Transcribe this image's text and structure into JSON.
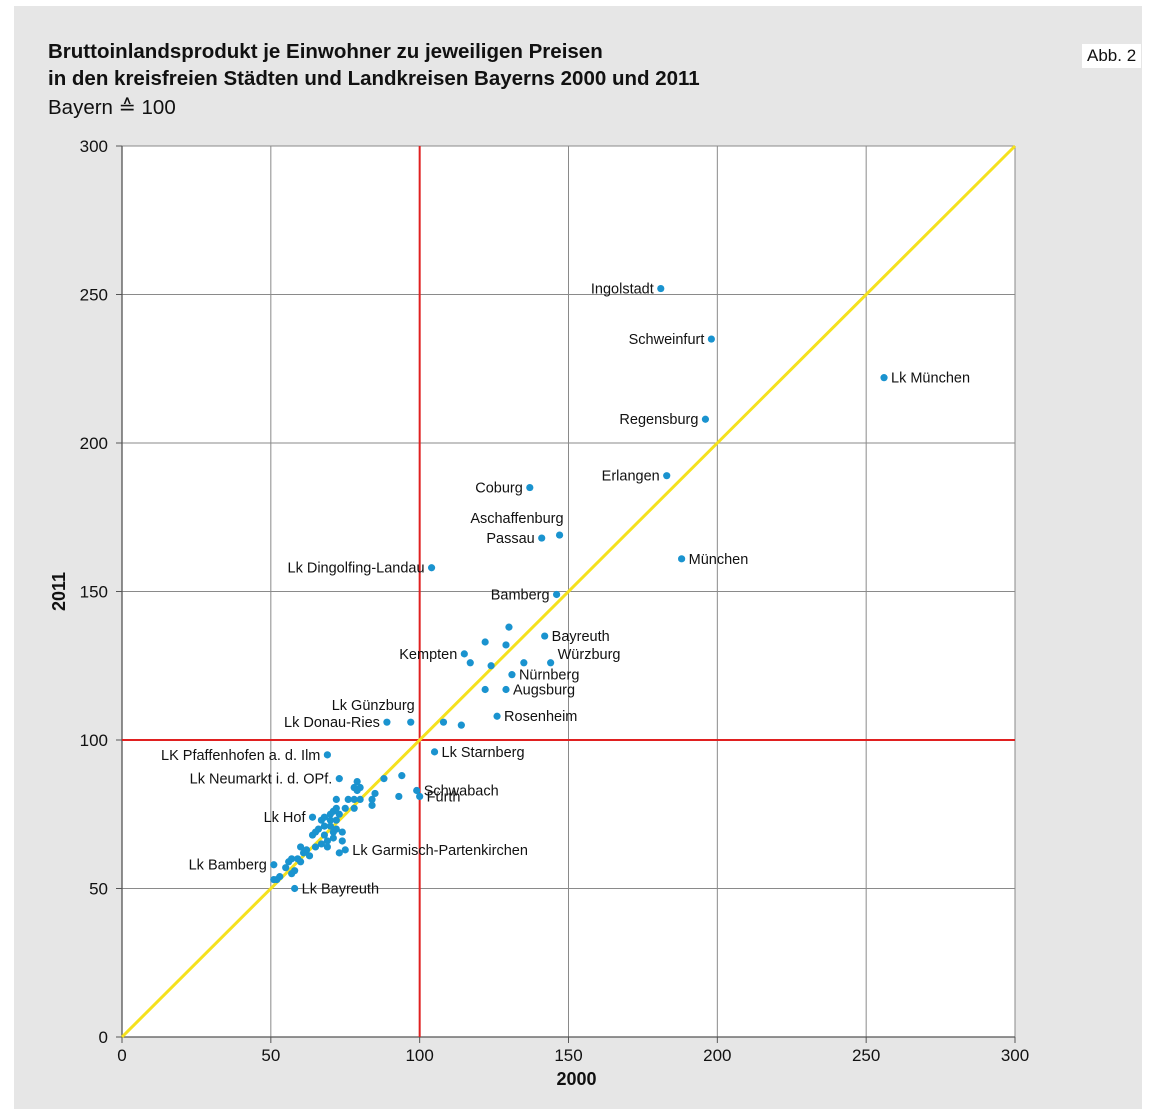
{
  "figure_number": "Abb. 2",
  "chart_data": {
    "type": "scatter",
    "title": "Bruttoinlandsprodukt je Einwohner zu jeweiligen Preisen\nin den kreisfreien Städten und Landkreisen Bayerns 2000 und 2011",
    "subtitle": "Bayern ≙ 100",
    "xlabel": "2000",
    "ylabel": "2011",
    "xlim": [
      0,
      300
    ],
    "ylim": [
      0,
      300
    ],
    "xticks": [
      0,
      50,
      100,
      150,
      200,
      250,
      300
    ],
    "yticks": [
      0,
      50,
      100,
      150,
      200,
      250,
      300
    ],
    "grid": true,
    "colors": {
      "points": "#1a93cf",
      "reference": "#e02020",
      "diagonal": "#f5e11e",
      "grid": "#8a8a8a"
    },
    "reference_lines": {
      "x": 100,
      "y": 100
    },
    "diagonal": [
      [
        0,
        0
      ],
      [
        300,
        300
      ]
    ],
    "labeled_points": [
      {
        "label": "Ingolstadt",
        "x": 181,
        "y": 252,
        "side": "left"
      },
      {
        "label": "Schweinfurt",
        "x": 198,
        "y": 235,
        "side": "left"
      },
      {
        "label": "Lk München",
        "x": 256,
        "y": 222,
        "side": "right"
      },
      {
        "label": "Regensburg",
        "x": 196,
        "y": 208,
        "side": "left"
      },
      {
        "label": "Erlangen",
        "x": 183,
        "y": 189,
        "side": "left"
      },
      {
        "label": "Coburg",
        "x": 137,
        "y": 185,
        "side": "left"
      },
      {
        "label": "Aschaffenburg",
        "x": 147,
        "y": 169,
        "side": "left-above"
      },
      {
        "label": "Passau",
        "x": 141,
        "y": 168,
        "side": "left"
      },
      {
        "label": "München",
        "x": 188,
        "y": 161,
        "side": "right"
      },
      {
        "label": "Lk Dingolfing-Landau",
        "x": 104,
        "y": 158,
        "side": "left"
      },
      {
        "label": "Bamberg",
        "x": 146,
        "y": 149,
        "side": "left"
      },
      {
        "label": "Bayreuth",
        "x": 142,
        "y": 135,
        "side": "right"
      },
      {
        "label": "Kempten",
        "x": 115,
        "y": 129,
        "side": "left"
      },
      {
        "label": "Würzburg",
        "x": 144,
        "y": 126,
        "side": "right-above"
      },
      {
        "label": "Nürnberg",
        "x": 131,
        "y": 122,
        "side": "right"
      },
      {
        "label": "Augsburg",
        "x": 129,
        "y": 117,
        "side": "right"
      },
      {
        "label": "Lk Günzburg",
        "x": 97,
        "y": 106,
        "side": "left-above"
      },
      {
        "label": "Lk Donau-Ries",
        "x": 89,
        "y": 106,
        "side": "left"
      },
      {
        "label": "Rosenheim",
        "x": 126,
        "y": 108,
        "side": "right"
      },
      {
        "label": "LK Pfaffenhofen a. d. Ilm",
        "x": 69,
        "y": 95,
        "side": "left"
      },
      {
        "label": "Lk Starnberg",
        "x": 105,
        "y": 96,
        "side": "right"
      },
      {
        "label": "Lk Neumarkt i. d. OPf.",
        "x": 73,
        "y": 87,
        "side": "left"
      },
      {
        "label": "Schwabach",
        "x": 99,
        "y": 83,
        "side": "right"
      },
      {
        "label": "Fürth",
        "x": 100,
        "y": 81,
        "side": "right"
      },
      {
        "label": "Lk Hof",
        "x": 64,
        "y": 74,
        "side": "left"
      },
      {
        "label": "Lk Garmisch-Partenkirchen",
        "x": 75,
        "y": 63,
        "side": "right"
      },
      {
        "label": "Lk Bamberg",
        "x": 51,
        "y": 58,
        "side": "left"
      },
      {
        "label": "Lk Bayreuth",
        "x": 58,
        "y": 50,
        "side": "right"
      }
    ],
    "points": [
      [
        122,
        133
      ],
      [
        130,
        138
      ],
      [
        129,
        132
      ],
      [
        117,
        126
      ],
      [
        124,
        125
      ],
      [
        135,
        126
      ],
      [
        122,
        117
      ],
      [
        108,
        106
      ],
      [
        114,
        105
      ],
      [
        94,
        88
      ],
      [
        88,
        87
      ],
      [
        79,
        86
      ],
      [
        80,
        84
      ],
      [
        78,
        84
      ],
      [
        79,
        83
      ],
      [
        85,
        82
      ],
      [
        84,
        80
      ],
      [
        80,
        80
      ],
      [
        78,
        80
      ],
      [
        76,
        80
      ],
      [
        72,
        80
      ],
      [
        93,
        81
      ],
      [
        84,
        78
      ],
      [
        78,
        77
      ],
      [
        75,
        77
      ],
      [
        72,
        77
      ],
      [
        71,
        76
      ],
      [
        73,
        75
      ],
      [
        70,
        75
      ],
      [
        72,
        73
      ],
      [
        68,
        74
      ],
      [
        70,
        73
      ],
      [
        67,
        73
      ],
      [
        70,
        71
      ],
      [
        68,
        71
      ],
      [
        66,
        70
      ],
      [
        72,
        70
      ],
      [
        74,
        69
      ],
      [
        71,
        69
      ],
      [
        65,
        69
      ],
      [
        68,
        68
      ],
      [
        64,
        68
      ],
      [
        71,
        67
      ],
      [
        69,
        66
      ],
      [
        74,
        66
      ],
      [
        67,
        65
      ],
      [
        65,
        64
      ],
      [
        60,
        64
      ],
      [
        62,
        63
      ],
      [
        69,
        64
      ],
      [
        63,
        61
      ],
      [
        57,
        60
      ],
      [
        56,
        59
      ],
      [
        60,
        59
      ],
      [
        55,
        57
      ],
      [
        58,
        56
      ],
      [
        57,
        55
      ],
      [
        53,
        54
      ],
      [
        52,
        53
      ],
      [
        51,
        53
      ],
      [
        59,
        60
      ],
      [
        61,
        62
      ],
      [
        73,
        62
      ]
    ]
  }
}
